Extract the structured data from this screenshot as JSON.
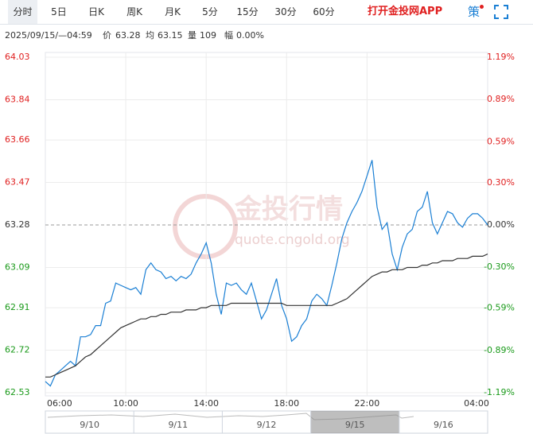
{
  "toolbar": {
    "tabs": [
      "分时",
      "5日",
      "日K",
      "周K",
      "月K",
      "5分",
      "15分",
      "30分",
      "60分"
    ],
    "active_tab": 0,
    "app_link": "打开金投网APP",
    "strategy": "策"
  },
  "info": {
    "time": "2025/09/15/—04:59",
    "price_label": "价",
    "price": "63.28",
    "avg_label": "均",
    "avg": "63.15",
    "volume_label": "量",
    "volume": "109",
    "range_label": "幅",
    "range": "0.00%"
  },
  "watermark": {
    "brand": "金投行情",
    "url": "quote.cngold.org"
  },
  "navigator": {
    "dates": [
      "9/10",
      "9/11",
      "9/12",
      "9/15",
      "9/16"
    ],
    "selected": 3
  },
  "chart_data": {
    "type": "line",
    "categories": [
      "06:00",
      null,
      null,
      null,
      null,
      null,
      null,
      null,
      null,
      null,
      null,
      null,
      null,
      null,
      null,
      null,
      "10:00",
      null,
      null,
      null,
      null,
      null,
      null,
      null,
      null,
      null,
      null,
      null,
      null,
      null,
      null,
      null,
      "14:00",
      null,
      null,
      null,
      null,
      null,
      null,
      null,
      null,
      null,
      null,
      null,
      null,
      null,
      null,
      null,
      "18:00",
      null,
      null,
      null,
      null,
      null,
      null,
      null,
      null,
      null,
      null,
      null,
      null,
      null,
      null,
      null,
      "22:00",
      null,
      null,
      null,
      null,
      null,
      null,
      null,
      null,
      null,
      null,
      null,
      null,
      null,
      null,
      null,
      null,
      null,
      null,
      null,
      null,
      null,
      null,
      null,
      "04:00"
    ],
    "series": [
      {
        "name": "价",
        "color": "#1a7fd4",
        "values": [
          62.58,
          62.56,
          62.61,
          62.63,
          62.65,
          62.67,
          62.65,
          62.78,
          62.78,
          62.79,
          62.83,
          62.83,
          62.93,
          62.94,
          63.02,
          63.01,
          63.0,
          62.99,
          63.0,
          62.97,
          63.08,
          63.11,
          63.08,
          63.07,
          63.04,
          63.05,
          63.03,
          63.05,
          63.04,
          63.06,
          63.11,
          63.15,
          63.2,
          63.11,
          62.97,
          62.88,
          63.02,
          63.01,
          63.02,
          62.99,
          62.97,
          63.02,
          62.94,
          62.86,
          62.9,
          62.97,
          63.04,
          62.92,
          62.86,
          62.76,
          62.78,
          62.83,
          62.86,
          62.94,
          62.97,
          62.95,
          62.92,
          63.01,
          63.11,
          63.22,
          63.29,
          63.34,
          63.38,
          63.43,
          63.5,
          63.57,
          63.36,
          63.26,
          63.29,
          63.15,
          63.08,
          63.18,
          63.24,
          63.26,
          63.34,
          63.36,
          63.43,
          63.29,
          63.24,
          63.29,
          63.34,
          63.33,
          63.29,
          63.27,
          63.31,
          63.33,
          63.33,
          63.31,
          63.28
        ]
      },
      {
        "name": "均",
        "color": "#333333",
        "values": [
          62.6,
          62.6,
          62.61,
          62.62,
          62.63,
          62.64,
          62.65,
          62.67,
          62.69,
          62.7,
          62.72,
          62.74,
          62.76,
          62.78,
          62.8,
          62.82,
          62.83,
          62.84,
          62.85,
          62.86,
          62.86,
          62.87,
          62.87,
          62.88,
          62.88,
          62.89,
          62.89,
          62.89,
          62.9,
          62.9,
          62.9,
          62.91,
          62.91,
          62.92,
          62.92,
          62.92,
          62.92,
          62.93,
          62.93,
          62.93,
          62.93,
          62.93,
          62.93,
          62.93,
          62.93,
          62.93,
          62.93,
          62.93,
          62.92,
          62.92,
          62.92,
          62.92,
          62.92,
          62.92,
          62.92,
          62.92,
          62.92,
          62.92,
          62.93,
          62.94,
          62.95,
          62.97,
          62.99,
          63.01,
          63.03,
          63.05,
          63.06,
          63.07,
          63.07,
          63.08,
          63.08,
          63.08,
          63.09,
          63.09,
          63.09,
          63.1,
          63.1,
          63.11,
          63.11,
          63.12,
          63.12,
          63.12,
          63.13,
          63.13,
          63.13,
          63.14,
          63.14,
          63.14,
          63.15
        ]
      }
    ],
    "ylim": [
      62.53,
      64.03
    ],
    "yticks": [
      64.03,
      63.84,
      63.66,
      63.47,
      63.28,
      63.09,
      62.91,
      62.72,
      62.53
    ],
    "y2lim": [
      -1.19,
      1.19
    ],
    "y2ticks": [
      {
        "value": 1.19,
        "label": "1.19%"
      },
      {
        "value": 0.89,
        "label": "0.89%"
      },
      {
        "value": 0.59,
        "label": "0.59%"
      },
      {
        "value": 0.3,
        "label": "0.30%"
      },
      {
        "value": 0.0,
        "label": "0.00%"
      },
      {
        "value": -0.3,
        "label": "-0.30%"
      },
      {
        "value": -0.59,
        "label": "-0.59%"
      },
      {
        "value": -0.89,
        "label": "-0.89%"
      },
      {
        "value": -1.19,
        "label": "-1.19%"
      }
    ],
    "baseline": 63.28,
    "up_color": "#e02020",
    "down_color": "#1a9a1a",
    "flat_color": "#333333",
    "grid": true
  }
}
